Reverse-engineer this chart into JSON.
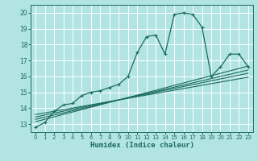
{
  "xlabel": "Humidex (Indice chaleur)",
  "background_color": "#b2e4e4",
  "grid_color": "#ffffff",
  "line_color": "#1a6b5a",
  "xlim": [
    -0.5,
    23.5
  ],
  "ylim": [
    12.5,
    20.5
  ],
  "yticks": [
    13,
    14,
    15,
    16,
    17,
    18,
    19,
    20
  ],
  "xticks": [
    0,
    1,
    2,
    3,
    4,
    5,
    6,
    7,
    8,
    9,
    10,
    11,
    12,
    13,
    14,
    15,
    16,
    17,
    18,
    19,
    20,
    21,
    22,
    23
  ],
  "main_x": [
    0,
    1,
    2,
    3,
    4,
    5,
    6,
    7,
    8,
    9,
    10,
    11,
    12,
    13,
    14,
    15,
    16,
    17,
    18,
    19,
    20,
    21,
    22,
    23
  ],
  "main_y": [
    12.8,
    13.1,
    13.8,
    14.2,
    14.3,
    14.8,
    15.0,
    15.1,
    15.3,
    15.5,
    16.0,
    17.5,
    18.5,
    18.6,
    17.4,
    19.9,
    20.0,
    19.9,
    19.1,
    16.0,
    16.6,
    17.4,
    17.4,
    16.6
  ],
  "line1_x": [
    0,
    23
  ],
  "line1_y": [
    13.15,
    16.65
  ],
  "line2_x": [
    0,
    23
  ],
  "line2_y": [
    13.3,
    16.4
  ],
  "line3_x": [
    0,
    23
  ],
  "line3_y": [
    13.45,
    16.2
  ],
  "line4_x": [
    0,
    23
  ],
  "line4_y": [
    13.6,
    15.95
  ]
}
